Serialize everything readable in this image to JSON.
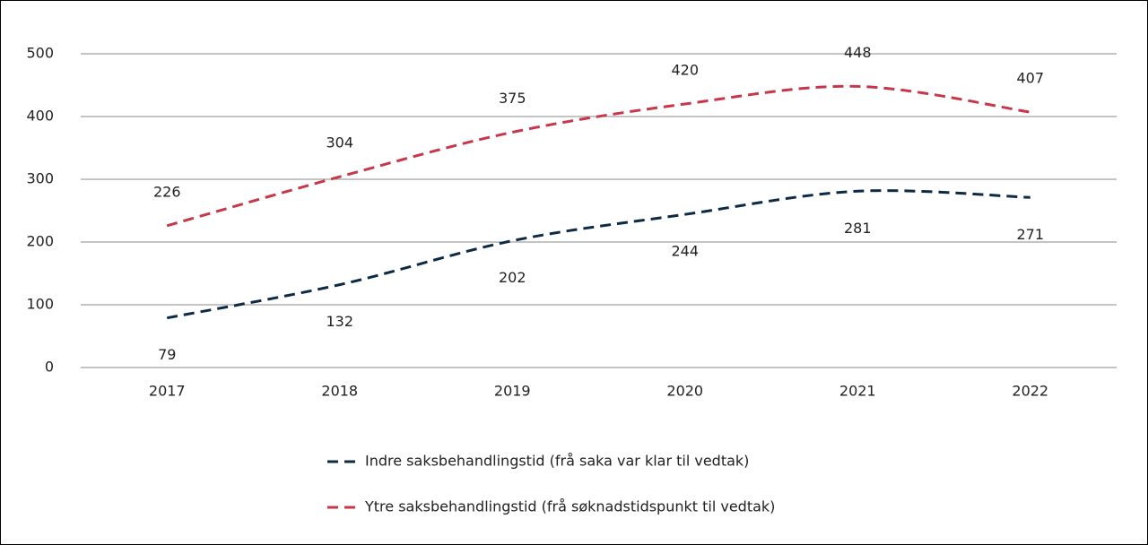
{
  "chart_data": {
    "type": "line",
    "categories": [
      "2017",
      "2018",
      "2019",
      "2020",
      "2021",
      "2022"
    ],
    "series": [
      {
        "name": "Indre saksbehandlingstid (frå saka var klar til vedtak)",
        "color": "#0d2a45",
        "values": [
          79,
          132,
          202,
          244,
          281,
          271
        ]
      },
      {
        "name": "Ytre saksbehandlingstid (frå søknadstidspunkt til vedtak)",
        "color": "#c8364a",
        "values": [
          226,
          304,
          375,
          420,
          448,
          407
        ]
      }
    ],
    "ylim": [
      0,
      500
    ],
    "yticks": [
      0,
      100,
      200,
      300,
      400,
      500
    ],
    "grid": true,
    "smooth": true,
    "dashed": true,
    "legend": "bottom"
  }
}
